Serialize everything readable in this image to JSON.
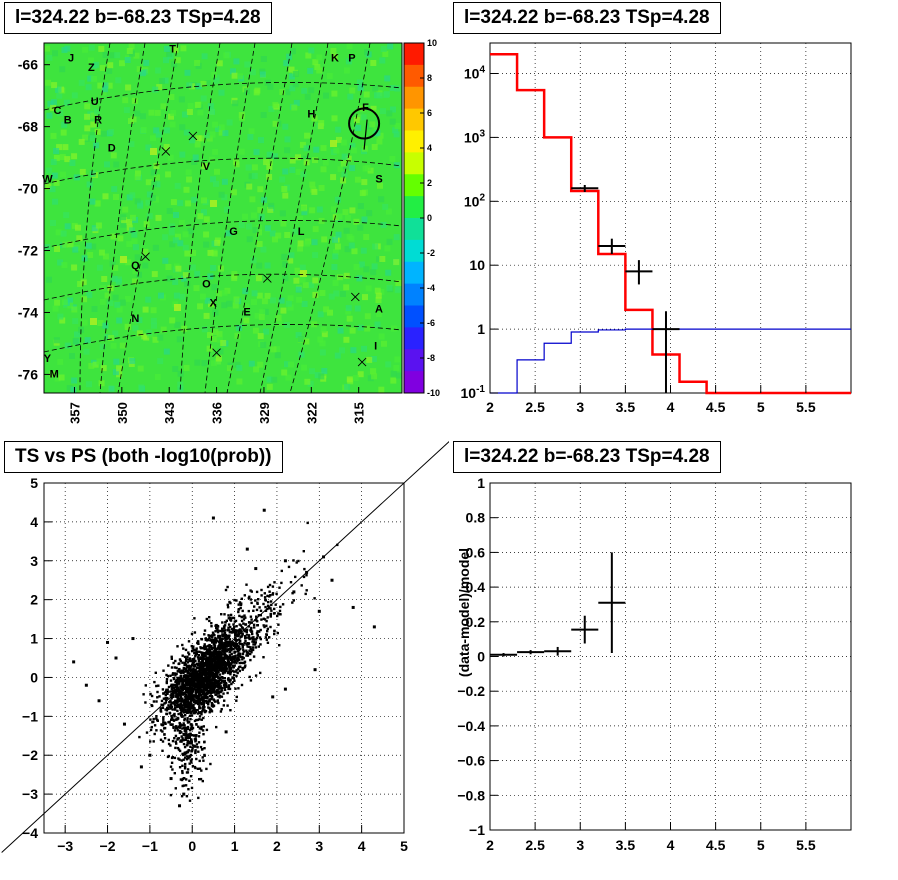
{
  "panels": {
    "map_title": "l=324.22 b=-68.23 TSp=4.28",
    "spectrum_title": "l=324.22 b=-68.23 TSp=4.28",
    "scatter_title": "TS vs PS (both -log10(prob))",
    "residual_title": "l=324.22 b=-68.23 TSp=4.28"
  },
  "colors": {
    "map_background": "#3ee43e",
    "model_line": "#ff0000",
    "background_line": "#0000cc",
    "data_marker": "#000000"
  },
  "chart_data": [
    {
      "type": "heatmap",
      "title": "l=324.22 b=-68.23 TSp=4.28",
      "y_ticks": [
        "-66",
        "-68",
        "-70",
        "-72",
        "-74",
        "-76"
      ],
      "x_ticks": [
        "357",
        "350",
        "343",
        "336",
        "329",
        "322",
        "315"
      ],
      "colorbar": {
        "range": [
          -10,
          10
        ],
        "ticks": [
          "10",
          "8",
          "6",
          "4",
          "2",
          "0",
          "-2",
          "-4",
          "-6",
          "-8",
          "-10"
        ],
        "colors": [
          "#ff1a00",
          "#ff5a00",
          "#ff9500",
          "#ffc800",
          "#fff000",
          "#c8ff00",
          "#64ff00",
          "#22ee44",
          "#10e098",
          "#00dcd4",
          "#00b4ff",
          "#0082ff",
          "#0050ff",
          "#2a22ff",
          "#5a12f0",
          "#8000e0"
        ]
      },
      "labels": [
        {
          "text": "T",
          "l": 342.5,
          "b": -65.6
        },
        {
          "text": "J",
          "l": 357.5,
          "b": -65.9
        },
        {
          "text": "Z",
          "l": 354.5,
          "b": -66.2
        },
        {
          "text": "K",
          "l": 318.5,
          "b": -65.9
        },
        {
          "text": "P",
          "l": 316.0,
          "b": -65.9
        },
        {
          "text": "U",
          "l": 354.0,
          "b": -67.3
        },
        {
          "text": "C",
          "l": 359.5,
          "b": -67.6
        },
        {
          "text": "B",
          "l": 358.0,
          "b": -67.9
        },
        {
          "text": "R",
          "l": 353.5,
          "b": -67.9
        },
        {
          "text": "H",
          "l": 322.0,
          "b": -67.7
        },
        {
          "text": "F",
          "l": 314.0,
          "b": -67.5
        },
        {
          "text": "D",
          "l": 351.5,
          "b": -68.8
        },
        {
          "text": "W",
          "l": 361.0,
          "b": -69.8
        },
        {
          "text": "V",
          "l": 337.5,
          "b": -69.4
        },
        {
          "text": "S",
          "l": 312.0,
          "b": -69.8
        },
        {
          "text": "G",
          "l": 333.5,
          "b": -71.5
        },
        {
          "text": "L",
          "l": 323.5,
          "b": -71.5
        },
        {
          "text": "Q",
          "l": 348.0,
          "b": -72.6
        },
        {
          "text": "O",
          "l": 337.5,
          "b": -73.2
        },
        {
          "text": "X",
          "l": 336.5,
          "b": -73.8
        },
        {
          "text": "E",
          "l": 331.5,
          "b": -74.1
        },
        {
          "text": "N",
          "l": 348.0,
          "b": -74.3
        },
        {
          "text": "A",
          "l": 312.0,
          "b": -74.0
        },
        {
          "text": "I",
          "l": 312.5,
          "b": -75.2
        },
        {
          "text": "Y",
          "l": 361.0,
          "b": -75.6
        },
        {
          "text": "M",
          "l": 360.0,
          "b": -76.1
        }
      ],
      "crosses": [
        {
          "l": 339.5,
          "b": -68.3
        },
        {
          "l": 343.5,
          "b": -68.8
        },
        {
          "l": 346.5,
          "b": -72.2
        },
        {
          "l": 328.5,
          "b": -72.9
        },
        {
          "l": 315.5,
          "b": -73.5
        },
        {
          "l": 314.5,
          "b": -75.6
        },
        {
          "l": 336.0,
          "b": -75.3
        }
      ],
      "source_circle": {
        "l": 314.2,
        "b": -67.9
      }
    },
    {
      "type": "line",
      "title": "l=324.22 b=-68.23 TSp=4.28",
      "log_y": true,
      "xlim": [
        2,
        6
      ],
      "ylim": [
        0.1,
        30000
      ],
      "x_ticks": [
        "2",
        "2.5",
        "3",
        "3.5",
        "4",
        "4.5",
        "5",
        "5.5"
      ],
      "y_ticks": [
        "10^-1",
        "1",
        "10",
        "10^2",
        "10^3",
        "10^4"
      ],
      "grid": true,
      "series": [
        {
          "bins": [
            [
              2.0,
              2.3,
              20000
            ],
            [
              2.3,
              2.6,
              5500
            ],
            [
              2.6,
              2.9,
              1000
            ],
            [
              2.9,
              3.2,
              145
            ],
            [
              3.2,
              3.5,
              15
            ],
            [
              3.5,
              3.8,
              2
            ],
            [
              3.8,
              4.1,
              0.4
            ],
            [
              4.1,
              4.4,
              0.15
            ],
            [
              4.4,
              6.0,
              0.1
            ]
          ]
        },
        {
          "bins": [
            [
              2.0,
              2.3,
              0.1
            ],
            [
              2.3,
              2.6,
              0.33
            ],
            [
              2.6,
              2.9,
              0.6
            ],
            [
              2.9,
              3.2,
              0.9
            ],
            [
              3.2,
              3.5,
              0.97
            ],
            [
              3.5,
              6.0,
              1.0
            ]
          ]
        }
      ],
      "data_points": [
        {
          "x": 3.05,
          "xerr": 0.15,
          "y": 160,
          "ylo": 140,
          "yhi": 180
        },
        {
          "x": 3.35,
          "xerr": 0.15,
          "y": 20,
          "ylo": 15,
          "yhi": 26
        },
        {
          "x": 3.65,
          "xerr": 0.15,
          "y": 8,
          "ylo": 5,
          "yhi": 12
        },
        {
          "x": 3.95,
          "xerr": 0.15,
          "y": 1.0,
          "ylo": 0.1,
          "yhi": 1.9
        }
      ]
    },
    {
      "type": "scatter",
      "title": "TS vs PS (both -log10(prob))",
      "xlim": [
        -3.5,
        5
      ],
      "ylim": [
        -4,
        5
      ],
      "x_ticks": [
        "-3",
        "-2",
        "-1",
        "0",
        "1",
        "2",
        "3",
        "4",
        "5"
      ],
      "y_ticks": [
        "-4",
        "-3",
        "-2",
        "-1",
        "0",
        "1",
        "2",
        "3",
        "4",
        "5"
      ],
      "grid": true,
      "diagonal": "y = x",
      "outliers": [
        [
          -2.8,
          0.4
        ],
        [
          -2.5,
          -0.2
        ],
        [
          -2.2,
          -0.6
        ],
        [
          -1.8,
          0.5
        ],
        [
          -1.6,
          -1.2
        ],
        [
          -1.2,
          -2.3
        ],
        [
          -1.0,
          -2.0
        ],
        [
          -0.3,
          -3.3
        ],
        [
          -0.2,
          -3.0
        ],
        [
          0.5,
          4.1
        ],
        [
          1.7,
          4.3
        ],
        [
          1.3,
          3.3
        ],
        [
          1.5,
          2.8
        ],
        [
          2.2,
          3.0
        ],
        [
          2.7,
          2.7
        ],
        [
          3.1,
          3.1
        ],
        [
          3.8,
          1.8
        ],
        [
          3.3,
          2.5
        ],
        [
          4.3,
          1.3
        ],
        [
          2.9,
          0.2
        ],
        [
          2.2,
          -0.3
        ],
        [
          1.9,
          -0.5
        ],
        [
          -0.5,
          -2.6
        ],
        [
          0.8,
          -1.4
        ],
        [
          -1.4,
          1.0
        ],
        [
          -2.0,
          0.9
        ],
        [
          2.4,
          2.2
        ],
        [
          3.0,
          1.7
        ]
      ]
    },
    {
      "type": "scatter",
      "title": "l=324.22 b=-68.23 TSp=4.28",
      "ylabel": "(data-model)/model",
      "xlim": [
        2,
        6
      ],
      "ylim": [
        -1,
        1
      ],
      "x_ticks": [
        "2",
        "2.5",
        "3",
        "3.5",
        "4",
        "4.5",
        "5",
        "5.5"
      ],
      "y_ticks": [
        "-1",
        "-0.8",
        "-0.6",
        "-0.4",
        "-0.2",
        "0",
        "0.2",
        "0.4",
        "0.6",
        "0.8",
        "1"
      ],
      "grid": true,
      "points": [
        {
          "x": 2.15,
          "xerr": 0.15,
          "y": 0.01,
          "yerr": 0.01
        },
        {
          "x": 2.45,
          "xerr": 0.15,
          "y": 0.025,
          "yerr": 0.012
        },
        {
          "x": 2.75,
          "xerr": 0.15,
          "y": 0.03,
          "yerr": 0.025
        },
        {
          "x": 3.05,
          "xerr": 0.15,
          "y": 0.155,
          "yerr": 0.08
        },
        {
          "x": 3.35,
          "xerr": 0.15,
          "y": 0.31,
          "yerr": 0.29
        }
      ]
    }
  ]
}
